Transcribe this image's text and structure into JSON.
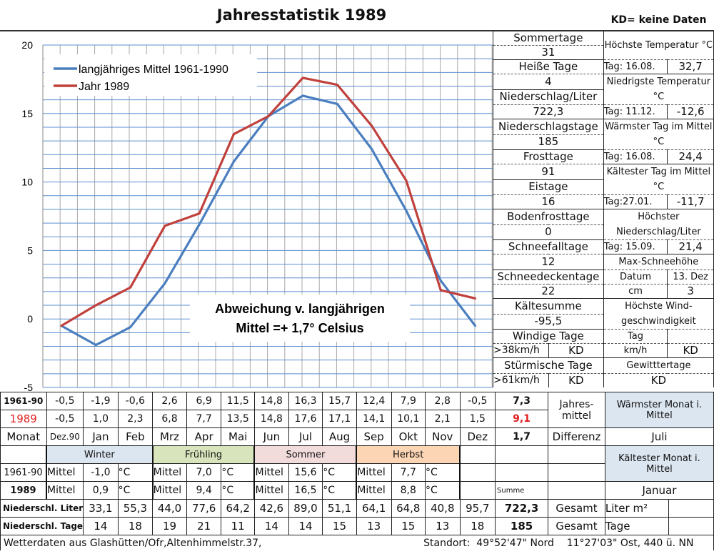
{
  "title": "Jahresstatistik 1989",
  "kd_note": "KD= keine Daten",
  "chart_data": {
    "type": "line",
    "categories": [
      "Dez.90",
      "Jan",
      "Feb",
      "Mrz",
      "Apr",
      "Mai",
      "Jun",
      "Jul",
      "Aug",
      "Sep",
      "Okt",
      "Nov",
      "Dez"
    ],
    "series": [
      {
        "name": "langjähriges Mittel 1961-1990",
        "color": "#4a7ebf",
        "values": [
          -0.5,
          -1.9,
          -0.6,
          2.6,
          6.9,
          11.5,
          14.8,
          16.3,
          15.7,
          12.4,
          7.9,
          2.8,
          -0.5
        ]
      },
      {
        "name": "Jahr 1989",
        "color": "#c0403c",
        "values": [
          -0.5,
          1.0,
          2.3,
          6.8,
          7.7,
          13.5,
          14.8,
          17.6,
          17.1,
          14.1,
          10.1,
          2.1,
          1.5
        ]
      }
    ],
    "ylim": [
      -5,
      20
    ],
    "yticks": [
      "20",
      "15",
      "10",
      "5",
      "0",
      "-5"
    ],
    "grid": true,
    "legend": "top-left",
    "annotation": [
      "Abweichung v. langjährigen",
      "Mittel =+ 1,7° Celsius"
    ]
  },
  "stats_left": [
    {
      "label": "Sommertage",
      "value": "31"
    },
    {
      "label": "Heiße Tage",
      "value": "4"
    },
    {
      "label": "Niederschlag/Liter",
      "value": "722,3"
    },
    {
      "label": "Niederschlagstage",
      "value": "185"
    },
    {
      "label": "Frosttage",
      "value": "91"
    },
    {
      "label": "Eistage",
      "value": "16"
    },
    {
      "label": "Bodenfrosttage",
      "value": "0"
    },
    {
      "label": "Schneefalltage",
      "value": "12"
    },
    {
      "label": "Schneedeckentage",
      "value": "22"
    },
    {
      "label": "Kältesumme",
      "value": "-95,5"
    },
    {
      "label": "Windige Tage",
      "sub": ">38km/h",
      "value": "KD"
    },
    {
      "label": "Stürmische Tage",
      "sub": ">61km/h",
      "value": "KD"
    }
  ],
  "stats_right": {
    "max_temp": {
      "label": "Höchste Temperatur °C",
      "day": "Tag: 16.08.",
      "value": "32,7"
    },
    "min_temp": {
      "label": "Niedrigste Temperatur °C",
      "day": "Tag: 11.12.",
      "value": "-12,6"
    },
    "warmest_day": {
      "label": "Wärmster Tag im Mittel °C",
      "day": "Tag: 16.08.",
      "value": "24,4"
    },
    "coldest_day": {
      "label": "Kältester Tag im Mittel °C",
      "day": "Tag:27.01.",
      "value": "-11,7"
    },
    "max_precip": {
      "label": "Höchster Niederschlag/Liter",
      "day": "Tag: 15.09.",
      "value": "21,4"
    },
    "snow": {
      "label": "Max-Schneehöhe",
      "date_label": "Datum",
      "date": "13. Dez",
      "cm_label": "cm",
      "cm": "3"
    },
    "wind": {
      "label": "Höchste Wind-geschwindigkeit",
      "day_label": "Tag",
      "day": "",
      "kmh_label": "km/h",
      "kmh": "KD"
    },
    "thunder": {
      "label": "Gewitttertage",
      "value": "KD"
    }
  },
  "table": {
    "row_mean_label": "1961-90",
    "row_year_label": "1989",
    "row_month_label": "Monat",
    "mean": [
      "-0,5",
      "-1,9",
      "-0,6",
      "2,6",
      "6,9",
      "11,5",
      "14,8",
      "16,3",
      "15,7",
      "12,4",
      "7,9",
      "2,8",
      "-0,5"
    ],
    "year": [
      "-0,5",
      "1,0",
      "2,3",
      "6,8",
      "7,7",
      "13,5",
      "14,8",
      "17,6",
      "17,1",
      "14,1",
      "10,1",
      "2,1",
      "1,5"
    ],
    "months": [
      "Dez.90",
      "Jan",
      "Feb",
      "Mrz",
      "Apr",
      "Mai",
      "Jun",
      "Jul",
      "Aug",
      "Sep",
      "Okt",
      "Nov",
      "Dez"
    ],
    "annual_mean": "7,3",
    "annual_year": "9,1",
    "difference": "1,7",
    "jahresmittel_label": "Jahres-mittel",
    "differenz_label": "Differenz",
    "warmest_month_label": "Wärmster Monat i. Mittel",
    "warmest_month": "Juli",
    "coldest_month_label": "Kältester Monat i. Mittel",
    "coldest_month": "Januar",
    "seasons": [
      {
        "name": "Winter",
        "color": "#dce6f1",
        "mean": "-1,0",
        "year": "0,9"
      },
      {
        "name": "Frühling",
        "color": "#d8e4bc",
        "mean": "7,0",
        "year": "9,4"
      },
      {
        "name": "Sommer",
        "color": "#f2dcdb",
        "mean": "15,6",
        "year": "16,5"
      },
      {
        "name": "Herbst",
        "color": "#fcd5b4",
        "mean": "7,7",
        "year": "8,8"
      }
    ],
    "mittel_label": "Mittel",
    "unit": "°C",
    "summe_label": "Summe",
    "precip_label": "Niederschl. Liter",
    "precip": [
      "33,1",
      "55,3",
      "44,0",
      "77,6",
      "64,2",
      "42,6",
      "89,0",
      "51,1",
      "64,1",
      "64,8",
      "40,8",
      "95,7"
    ],
    "precip_total": "722,3",
    "gesamt_label": "Gesamt",
    "precip_unit": "Liter m²",
    "days_label": "Niederschl. Tage",
    "days": [
      "14",
      "18",
      "19",
      "21",
      "11",
      "14",
      "14",
      "15",
      "13",
      "15",
      "13",
      "18"
    ],
    "days_total": "185",
    "days_unit": "Tage"
  },
  "footer": {
    "left": "Wetterdaten aus Glashütten/Ofr,Altenhimmelstr.37,",
    "right": "Standort:  49°52'47\" Nord    11°27'03\" Ost, 440 ü. NN"
  }
}
